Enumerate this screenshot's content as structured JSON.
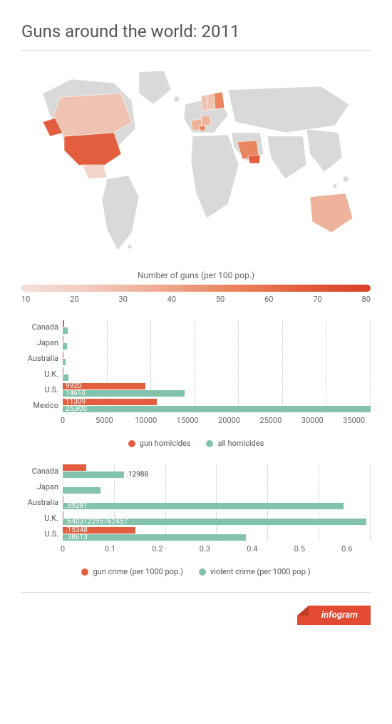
{
  "title": "Guns around the world: 2011",
  "colors": {
    "series_a": "#e35d3f",
    "series_b": "#82c3ac",
    "map_base": "#d9d9d9",
    "grid": "#dddddd",
    "text": "#555555"
  },
  "map": {
    "caption": "Number of guns (per 100 pop.)",
    "scale_gradient_stops": [
      "#f5e0d9",
      "#f2c9bb",
      "#eea98f",
      "#e9855f",
      "#e35d3f",
      "#d8402a"
    ],
    "scale_labels": [
      "10",
      "20",
      "30",
      "40",
      "50",
      "60",
      "70",
      "80"
    ],
    "highlighted_regions": [
      {
        "name": "United States",
        "fill": "#e35d3f"
      },
      {
        "name": "Canada",
        "fill": "#efc3b1"
      },
      {
        "name": "Mexico",
        "fill": "#f2d5c8"
      },
      {
        "name": "Australia",
        "fill": "#eeb49b"
      },
      {
        "name": "Saudi Arabia",
        "fill": "#e9855f"
      },
      {
        "name": "Yemen",
        "fill": "#e35d3f"
      },
      {
        "name": "Finland",
        "fill": "#e9855f"
      },
      {
        "name": "Sweden",
        "fill": "#efc3b1"
      },
      {
        "name": "Norway",
        "fill": "#efc3b1"
      },
      {
        "name": "Germany",
        "fill": "#eeb49b"
      },
      {
        "name": "France",
        "fill": "#eeb49b"
      },
      {
        "name": "Switzerland",
        "fill": "#e9855f"
      }
    ]
  },
  "chart1": {
    "type": "grouped_horizontal_bar",
    "x_max": 37000,
    "x_ticks": [
      0,
      5000,
      10000,
      15000,
      20000,
      25000,
      30000,
      35000
    ],
    "categories": [
      "Canada",
      "Japan",
      "Australia",
      "U.K.",
      "U.S.",
      "Mexico"
    ],
    "series": [
      {
        "name": "gun homicides",
        "color": "#e35d3f",
        "values": [
          170,
          10,
          40,
          40,
          9920,
          11309
        ],
        "labels": [
          "",
          "",
          "",
          "",
          "9920",
          "11309"
        ]
      },
      {
        "name": "all homicides",
        "color": "#82c3ac",
        "values": [
          600,
          500,
          300,
          700,
          14610,
          25800
        ],
        "labels": [
          "",
          "",
          "",
          "",
          "14610",
          "25,800"
        ]
      }
    ],
    "mexico_overflow_all": 37000,
    "legend": [
      "gun homicides",
      "all homicides"
    ]
  },
  "chart2": {
    "type": "grouped_horizontal_bar",
    "x_max": 0.65,
    "x_ticks": [
      0,
      0.1,
      0.2,
      0.3,
      0.4,
      0.5,
      0.6
    ],
    "categories": [
      "Canada",
      "Japan",
      "Australia",
      "U.K.",
      "U.S."
    ],
    "series": [
      {
        "name": "gun crime (per 1000 pop.)",
        "color": "#e35d3f",
        "values": [
          0.05,
          0.0,
          0.002,
          0.002,
          0.15348
        ],
        "labels": [
          "",
          "",
          "",
          "",
          ".15348"
        ]
      },
      {
        "name": "violent crime (per 1000 pop.)",
        "color": "#82c3ac",
        "values": [
          0.12988,
          0.08,
          0.59281,
          0.640312295762457,
          0.38613
        ],
        "labels": [
          ".12988",
          "",
          ".59281",
          ".640312295762457",
          ".38613"
        ]
      }
    ],
    "legend": [
      "gun crime (per 1000 pop.)",
      "violent crime (per 1000 pop.)"
    ]
  },
  "footer": {
    "brand": "infogram"
  }
}
